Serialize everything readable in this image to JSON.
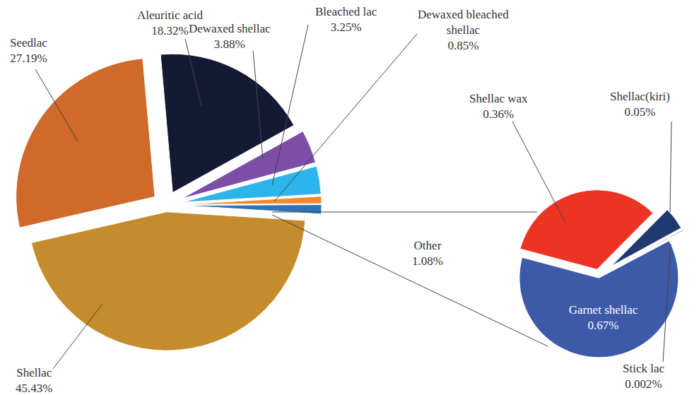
{
  "chart_data": [
    {
      "type": "pie",
      "categories": [
        "Aleuritic acid",
        "Dewaxed shellac",
        "Bleached lac",
        "Dewaxed bleached shellac",
        "Other",
        "Shellac",
        "Seedlac"
      ],
      "values": [
        18.32,
        3.88,
        3.25,
        0.85,
        1.08,
        45.43,
        27.19
      ],
      "value_labels": [
        "18.32%",
        "3.88%",
        "3.25%",
        "0.85%",
        "1.08%",
        "45.43%",
        "27.19%"
      ],
      "colors": [
        "#141a33",
        "#7d4ea6",
        "#2cb5ea",
        "#ef8a2c",
        "#2f74b5",
        "#c48c2c",
        "#cf6a2b"
      ],
      "data_labels": true
    },
    {
      "type": "pie",
      "categories": [
        "Shellac wax",
        "Shellac(kiri)",
        "Stick lac",
        "Garnet shellac"
      ],
      "values": [
        0.36,
        0.05,
        0.002,
        0.67
      ],
      "value_labels": [
        "0.36%",
        "0.05%",
        "0.002%",
        "0.67%"
      ],
      "colors": [
        "#ec3324",
        "#1f3a6e",
        "#2a4a8a",
        "#3d5aa8"
      ],
      "data_labels": true
    }
  ]
}
